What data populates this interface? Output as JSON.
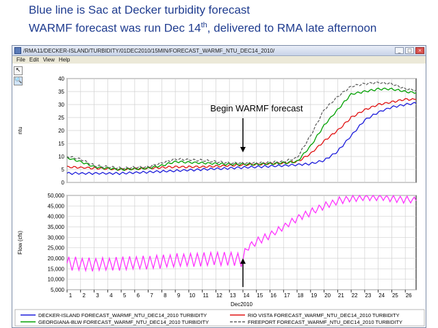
{
  "slide": {
    "line1": "Blue line is Sac at Decker turbidity forecast",
    "line2_pre": "WARMF forecast was run Dec 14",
    "line2_sup": "th",
    "line2_post": ", delivered to RMA late afternoon"
  },
  "window": {
    "title": "/RMA11/DECKER-ISLAND/TURBIDITY/01DEC2010/15MIN/FORECAST_WARMF_NTU_DEC14_2010/",
    "buttons": [
      "_",
      "□",
      "×"
    ],
    "menu": [
      "File",
      "Edit",
      "View",
      "Help"
    ],
    "tools": [
      {
        "icon": "pointer-icon",
        "glyph": "↖"
      },
      {
        "icon": "zoom-icon",
        "glyph": "🔍"
      }
    ]
  },
  "annotations": {
    "top_label": "Begin WARMF forecast"
  },
  "colors": {
    "decker": "#1a1adb",
    "riovista": "#e01010",
    "georgiana": "#00a000",
    "freeport": "#606060",
    "flow": "#ff33ff"
  },
  "chart_data": [
    {
      "type": "line",
      "ylabel": "ntu",
      "ylim": [
        0,
        40
      ],
      "yticks": [
        "0",
        "5",
        "10",
        "15",
        "20",
        "25",
        "30",
        "35",
        "40"
      ],
      "grid": true,
      "x_unit": "day of Dec 2010",
      "xlim": [
        1,
        26.8
      ],
      "series": [
        {
          "name": "DECKER-ISLAND FORECAST_WARMF_NTU_DEC14_2010 TURBIDITY",
          "color": "#1a1adb",
          "style": "solid",
          "points": [
            [
              1,
              3.5
            ],
            [
              3,
              3.5
            ],
            [
              5,
              3.5
            ],
            [
              7,
              4.0
            ],
            [
              9,
              4.5
            ],
            [
              11,
              5.0
            ],
            [
              13,
              5.5
            ],
            [
              15,
              6.0
            ],
            [
              17,
              6.5
            ],
            [
              18,
              6.8
            ],
            [
              19,
              7.2
            ],
            [
              20,
              8.5
            ],
            [
              21,
              12
            ],
            [
              22,
              18
            ],
            [
              23,
              24
            ],
            [
              24,
              27
            ],
            [
              25,
              29
            ],
            [
              26,
              30
            ],
            [
              26.8,
              30.5
            ]
          ]
        },
        {
          "name": "RIO VISTA FORECAST_WARMF_NTU_DEC14_2010 TURBIDITY",
          "color": "#e01010",
          "style": "solid",
          "points": [
            [
              1,
              6
            ],
            [
              3,
              5.5
            ],
            [
              5,
              5
            ],
            [
              7,
              5.5
            ],
            [
              9,
              6
            ],
            [
              11,
              6
            ],
            [
              13,
              6.5
            ],
            [
              15,
              7
            ],
            [
              17,
              7.5
            ],
            [
              18,
              8
            ],
            [
              19,
              11
            ],
            [
              20,
              16
            ],
            [
              21,
              20
            ],
            [
              22,
              25
            ],
            [
              23,
              28
            ],
            [
              24,
              30
            ],
            [
              25,
              31
            ],
            [
              26,
              32
            ],
            [
              26.8,
              32
            ]
          ]
        },
        {
          "name": "GEORGIANA-BLW FORECAST_WARMF_NTU_DEC14_2010 TURBIDITY",
          "color": "#00a000",
          "style": "solid",
          "points": [
            [
              1,
              9.5
            ],
            [
              2,
              8
            ],
            [
              3,
              6
            ],
            [
              5,
              5
            ],
            [
              7,
              5.5
            ],
            [
              8,
              6.5
            ],
            [
              9,
              8
            ],
            [
              11,
              7.5
            ],
            [
              13,
              7
            ],
            [
              15,
              7
            ],
            [
              17,
              7.5
            ],
            [
              18,
              8
            ],
            [
              19,
              14
            ],
            [
              20,
              22
            ],
            [
              21,
              28
            ],
            [
              22,
              34
            ],
            [
              23,
              35
            ],
            [
              24,
              36
            ],
            [
              25,
              36
            ],
            [
              26,
              35
            ],
            [
              26.8,
              34.5
            ]
          ]
        },
        {
          "name": "FREEPORT FORECAST_WARMF_NTU_DEC14_2010 TURBIDITY",
          "color": "#606060",
          "style": "dashed",
          "points": [
            [
              1,
              10
            ],
            [
              2,
              9
            ],
            [
              3,
              6.5
            ],
            [
              5,
              5.5
            ],
            [
              7,
              6
            ],
            [
              8,
              7.5
            ],
            [
              9,
              9
            ],
            [
              11,
              8.5
            ],
            [
              13,
              7.5
            ],
            [
              15,
              7.5
            ],
            [
              17,
              8
            ],
            [
              18,
              9.5
            ],
            [
              19,
              18
            ],
            [
              20,
              28
            ],
            [
              21,
              33
            ],
            [
              22,
              37
            ],
            [
              23,
              38
            ],
            [
              24,
              38.5
            ],
            [
              25,
              38
            ],
            [
              26,
              36
            ],
            [
              26.8,
              35.5
            ]
          ]
        }
      ]
    },
    {
      "type": "line",
      "ylabel": "Flow (cfs)",
      "ylim": [
        5000,
        50000
      ],
      "yticks": [
        "5,000",
        "10,000",
        "15,000",
        "20,000",
        "25,000",
        "30,000",
        "35,000",
        "40,000",
        "45,000",
        "50,000"
      ],
      "grid": true,
      "xlabel": "Dec2010",
      "xticks": [
        "1",
        "2",
        "3",
        "4",
        "5",
        "6",
        "7",
        "8",
        "9",
        "10",
        "11",
        "12",
        "13",
        "14",
        "15",
        "16",
        "17",
        "18",
        "19",
        "20",
        "21",
        "22",
        "23",
        "24",
        "25",
        "26"
      ],
      "xlim": [
        1,
        26.8
      ],
      "series": [
        {
          "name": "Flow",
          "color": "#ff33ff",
          "style": "solid",
          "points": [
            [
              1,
              17500
            ],
            [
              3,
              17000
            ],
            [
              5,
              17500
            ],
            [
              7,
              18000
            ],
            [
              9,
              19000
            ],
            [
              11,
              19500
            ],
            [
              13,
              20000
            ],
            [
              14,
              19000
            ],
            [
              14.3,
              25000
            ],
            [
              15,
              28000
            ],
            [
              16,
              31000
            ],
            [
              17,
              35000
            ],
            [
              18,
              39000
            ],
            [
              19,
              42000
            ],
            [
              20,
              45000
            ],
            [
              21,
              47500
            ],
            [
              22,
              48500
            ],
            [
              23,
              49000
            ],
            [
              24,
              49000
            ],
            [
              25,
              48500
            ],
            [
              26,
              48000
            ],
            [
              26.8,
              47500
            ]
          ]
        }
      ]
    }
  ],
  "legend": [
    {
      "label": "DECKER-ISLAND FORECAST_WARMF_NTU_DEC14_2010 TURBIDITY",
      "color": "#1a1adb",
      "style": "solid"
    },
    {
      "label": "RIO VISTA FORECAST_WARMF_NTU_DEC14_2010 TURBIDITY",
      "color": "#e01010",
      "style": "solid"
    },
    {
      "label": "GEORGIANA-BLW FORECAST_WARMF_NTU_DEC14_2010 TURBIDITY",
      "color": "#00a000",
      "style": "solid"
    },
    {
      "label": "FREEPORT FORECAST_WARMF_NTU_DEC14_2010 TURBIDITY",
      "color": "#606060",
      "style": "dashed"
    }
  ]
}
